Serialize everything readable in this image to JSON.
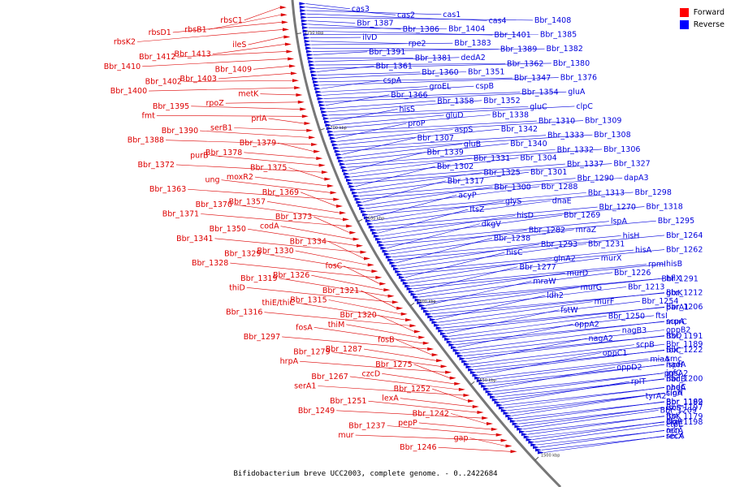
{
  "colors": {
    "forward": "#dd0000",
    "reverse": "#0000dd",
    "backbone": "#777777"
  },
  "legend": [
    {
      "label": "Forward",
      "color": "#ff0000"
    },
    {
      "label": "Reverse",
      "color": "#0000ff"
    }
  ],
  "caption": "Bifidobacterium breve UCC2003, complete genome. - 0..2422684",
  "scale_ticks": [
    "1750 kbp",
    "1700 kbp",
    "1650 kbp",
    "1600 kbp",
    "1550 kbp",
    "1500 kbp"
  ],
  "reverse_labels": [
    "cas3",
    "cas2",
    "cas1",
    "cas4",
    "Bbr_1408",
    "Bbr_1387",
    "Bbr_1386",
    "Bbr_1404",
    "Bbr_1401",
    "Bbr_1385",
    "ilvD",
    "rpe2",
    "Bbr_1383",
    "Bbr_1389",
    "Bbr_1382",
    "Bbr_1391",
    "Bbr_1381",
    "dedA2",
    "Bbr_1362",
    "Bbr_1380",
    "Bbr_1361",
    "Bbr_1360",
    "Bbr_1351",
    "Bbr_1347",
    "Bbr_1376",
    "cspA",
    "groEL",
    "cspB",
    "Bbr_1354",
    "gluA",
    "Bbr_1366",
    "Bbr_1358",
    "Bbr_1352",
    "gluC",
    "clpC",
    "hisS",
    "gluD",
    "Bbr_1338",
    "Bbr_1310",
    "Bbr_1309",
    "proP",
    "aspS",
    "Bbr_1342",
    "Bbr_1333",
    "Bbr_1308",
    "Bbr_1307",
    "gluB",
    "Bbr_1340",
    "Bbr_1332",
    "Bbr_1306",
    "Bbr_1339",
    "Bbr_1331",
    "Bbr_1304",
    "Bbr_1337",
    "Bbr_1327",
    "Bbr_1302",
    "Bbr_1325",
    "Bbr_1301",
    "Bbr_1290",
    "dapA3",
    "Bbr_1317",
    "Bbr_1300",
    "Bbr_1288",
    "Bbr_1313",
    "Bbr_1298",
    "acyP",
    "glyS",
    "dnaE",
    "Bbr_1270",
    "Bbr_1318",
    "ftsZ",
    "hisD",
    "Bbr_1269",
    "lspA",
    "Bbr_1295",
    "dkgV",
    "Bbr_1282",
    "mraZ",
    "hisH",
    "Bbr_1264",
    "Bbr_1238",
    "Bbr_1293",
    "Bbr_1231",
    "hisA",
    "Bbr_1262",
    "hisC",
    "glnA2",
    "murX",
    "rpmI",
    "hisB",
    "Bbr_1277",
    "murD",
    "Bbr_1226",
    "Bbr_1291",
    "hflX",
    "mraW",
    "murG",
    "Bbr_1213",
    "glxK",
    "Bbr_1212",
    "ldh2",
    "murF",
    "Bbr_1254",
    "parA1",
    "Bbr_1206",
    "fstW",
    "Bbr_1250",
    "ftsI",
    "murC",
    "scpA",
    "oppA2",
    "nagB3",
    "oppB2",
    "Bbr_1191",
    "ftsQ",
    "nagA2",
    "scpB",
    "Bbr_1189",
    "folC",
    "Bbr_1222",
    "oppC1",
    "miaA",
    "smc",
    "ispH",
    "nadA",
    "oppD2",
    "pgsA2",
    "infC",
    "nadB",
    "Bbr_1200",
    "rplT",
    "pheA",
    "nadC",
    "cinA",
    "sigH",
    "tyrA2",
    "Bbr_1199",
    "Bbr_1182",
    "iscS",
    "Bbr_1197",
    "Bbr_1209",
    "Bbr_1179",
    "ftsK",
    "Bbr_1198",
    "clgR",
    "ctpE",
    "recA",
    "acn",
    "recX",
    "secA"
  ],
  "forward_labels": [
    "rbsC1",
    "rbsB1",
    "rbsD1",
    "rbsK2",
    "ileS",
    "Bbr_1413",
    "Bbr_1412",
    "Bbr_1410",
    "Bbr_1409",
    "Bbr_1403",
    "Bbr_1402",
    "Bbr_1400",
    "metK",
    "rpoZ",
    "Bbr_1395",
    "fmt",
    "priA",
    "serB1",
    "Bbr_1390",
    "Bbr_1388",
    "Bbr_1379",
    "Bbr_1378",
    "purB",
    "Bbr_1372",
    "Bbr_1375",
    "moxR2",
    "ung",
    "Bbr_1363",
    "Bbr_1369",
    "Bbr_1357",
    "Bbr_1370",
    "Bbr_1371",
    "Bbr_1373",
    "codA",
    "Bbr_1350",
    "Bbr_1341",
    "Bbr_1334",
    "Bbr_1330",
    "Bbr_1329",
    "Bbr_1328",
    "fosC",
    "Bbr_1326",
    "Bbr_1319",
    "thiD",
    "Bbr_1321",
    "Bbr_1315",
    "thiE/thiC",
    "Bbr_1316",
    "Bbr_1320",
    "thiM",
    "fosA",
    "Bbr_1297",
    "fosB",
    "Bbr_1287",
    "Bbr_1279",
    "hrpA",
    "Bbr_1275",
    "czcD",
    "Bbr_1267",
    "serA1",
    "Bbr_1252",
    "lexA",
    "Bbr_1251",
    "Bbr_1249",
    "Bbr_1242",
    "pepP",
    "Bbr_1237",
    "mur",
    "gap",
    "Bbr_1246"
  ]
}
